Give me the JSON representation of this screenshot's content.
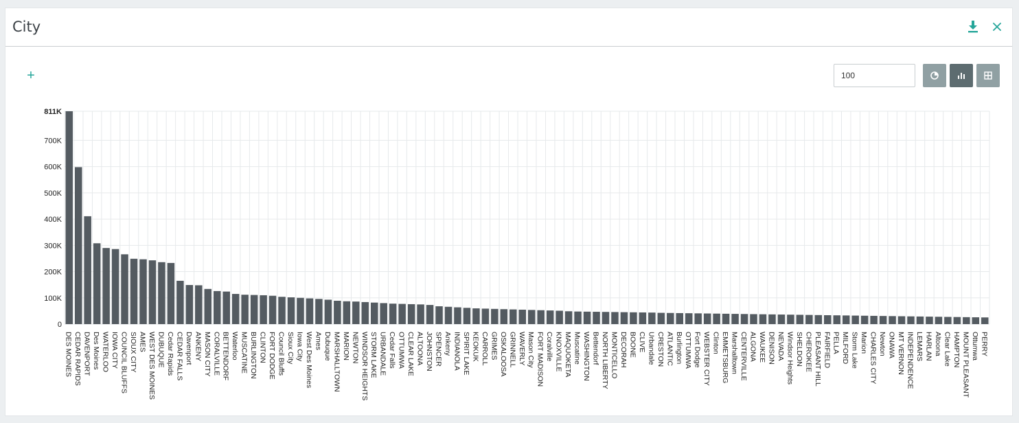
{
  "panel": {
    "title": "City",
    "download_icon": "download-icon",
    "close_icon": "close-icon"
  },
  "toolbar": {
    "add_icon": "plus-icon",
    "add_label": "+",
    "limit_value": "100",
    "views": [
      {
        "name": "pie-view-button",
        "icon": "pie-chart-icon",
        "active": false
      },
      {
        "name": "bar-view-button",
        "icon": "bar-chart-icon",
        "active": true
      },
      {
        "name": "table-view-button",
        "icon": "grid-icon",
        "active": false
      }
    ]
  },
  "colors": {
    "bar": "#545b61",
    "accent": "#26a69a",
    "button": "#90a0a3",
    "button_active": "#5d6c70",
    "grid": "#e6e9eb"
  },
  "chart_data": {
    "type": "bar",
    "title": "",
    "xlabel": "",
    "ylabel": "",
    "ylim": [
      0,
      811000
    ],
    "y_ticks": [
      {
        "value": 0,
        "label": "0"
      },
      {
        "value": 100000,
        "label": "100K"
      },
      {
        "value": 200000,
        "label": "200K"
      },
      {
        "value": 300000,
        "label": "300K"
      },
      {
        "value": 400000,
        "label": "400K"
      },
      {
        "value": 500000,
        "label": "500K"
      },
      {
        "value": 600000,
        "label": "600K"
      },
      {
        "value": 700000,
        "label": "700K"
      },
      {
        "value": 811000,
        "label": "811K"
      }
    ],
    "grid": true,
    "categories": [
      "DES MOINES",
      "CEDAR RAPIDS",
      "DAVENPORT",
      "Des Moines",
      "WATERLOO",
      "IOWA CITY",
      "COUNCIL BLUFFS",
      "SIOUX CITY",
      "AMES",
      "WEST DES MOINES",
      "DUBUQUE",
      "Cedar Rapids",
      "CEDAR FALLS",
      "Davenport",
      "ANKENY",
      "MASON CITY",
      "CORALVILLE",
      "BETTENDORF",
      "Waterloo",
      "MUSCATINE",
      "BURLINGTON",
      "CLINTON",
      "FORT DODGE",
      "Council Bluffs",
      "Sioux City",
      "Iowa City",
      "West Des Moines",
      "Ames",
      "Dubuque",
      "MARSHALLTOWN",
      "MARION",
      "NEWTON",
      "WINDSOR HEIGHTS",
      "STORM LAKE",
      "URBANDALE",
      "Cedar Falls",
      "OTTUMWA",
      "CLEAR LAKE",
      "ALTOONA",
      "JOHNSTON",
      "SPENCER",
      "Ankeny",
      "INDIANOLA",
      "SPIRIT LAKE",
      "KEOKUK",
      "CARROLL",
      "GRIMES",
      "OSKALOOSA",
      "GRINNELL",
      "WAVERLY",
      "Mason City",
      "FORT MADISON",
      "Coralville",
      "KNOXVILLE",
      "MAQUOKETA",
      "Muscatine",
      "WASHINGTON",
      "Bettendorf",
      "NORTH LIBERTY",
      "MONTICELLO",
      "DECORAH",
      "BOONE",
      "CLIVE",
      "Urbandale",
      "CRESTON",
      "ATLANTIC",
      "Burlington",
      "OTTUMWA",
      "Fort Dodge",
      "WEBSTER CITY",
      "Clinton",
      "EMMETSBURG",
      "Marshalltown",
      "CENTERVILLE",
      "ALGONA",
      "WAUKEE",
      "DENISON",
      "NEVADA",
      "Windsor Heights",
      "SHELDON",
      "CHEROKEE",
      "PLEASANT HILL",
      "FAIRFIELD",
      "PELLA",
      "MILFORD",
      "Storm Lake",
      "Marion",
      "CHARLES CITY",
      "Newton",
      "ONAWA",
      "MT VERNON",
      "INDEPENDENCE",
      "LEMARS",
      "HARLAN",
      "Altoona",
      "Clear Lake",
      "HAMPTON",
      "MOUNT PLEASANT",
      "Ottumwa",
      "PERRY"
    ],
    "values": [
      811000,
      598000,
      411000,
      308000,
      290000,
      286000,
      266000,
      249000,
      247000,
      243000,
      236000,
      233000,
      165000,
      149000,
      148000,
      134000,
      126000,
      124000,
      115000,
      112000,
      111000,
      110000,
      108000,
      104000,
      102000,
      100000,
      98000,
      96000,
      93000,
      89000,
      87000,
      86000,
      84000,
      82000,
      80000,
      78000,
      77000,
      76000,
      75000,
      73000,
      68000,
      66000,
      64000,
      62000,
      60000,
      59000,
      58000,
      57000,
      56000,
      55000,
      54000,
      53000,
      52000,
      51000,
      49000,
      48000,
      47500,
      47000,
      46500,
      46000,
      45500,
      45000,
      44500,
      44000,
      43000,
      42500,
      42000,
      41500,
      41000,
      40500,
      40000,
      39500,
      39000,
      38500,
      38000,
      37500,
      37000,
      36500,
      36000,
      35500,
      35000,
      34500,
      34000,
      33500,
      33000,
      32500,
      32000,
      31500,
      31000,
      30500,
      30000,
      29500,
      29000,
      28500,
      28000,
      27500,
      27000,
      26500,
      26000,
      25500
    ]
  }
}
